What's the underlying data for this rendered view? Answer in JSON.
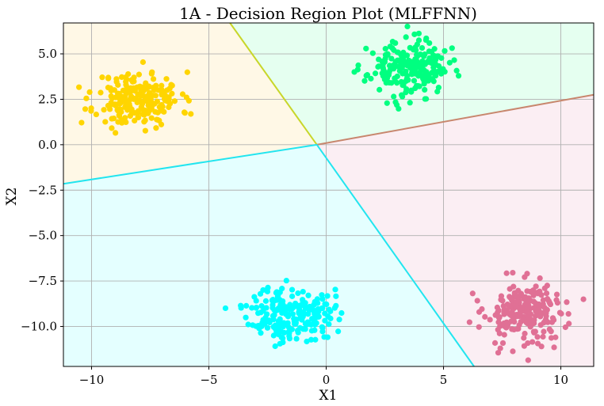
{
  "chart_data": {
    "type": "scatter",
    "title": "1A - Decision Region Plot (MLFFNN)",
    "xlabel": "X1",
    "ylabel": "X2",
    "xlim": [
      -11.2,
      11.4
    ],
    "ylim": [
      -12.2,
      6.7
    ],
    "xticks": [
      -10,
      -5,
      0,
      5,
      10
    ],
    "yticks": [
      5.0,
      2.5,
      0.0,
      -2.5,
      -5.0,
      -7.5,
      -10.0
    ],
    "xtick_labels": [
      "−10",
      "−5",
      "0",
      "5",
      "10"
    ],
    "ytick_labels": [
      "5.0",
      "2.5",
      "0.0",
      "−2.5",
      "−5.0",
      "−7.5",
      "−10.0"
    ],
    "grid": true,
    "regions": [
      {
        "class": "yellow",
        "color": "#fff8e6",
        "polygon": [
          [
            -11.2,
            6.7
          ],
          [
            -4.1,
            6.7
          ],
          [
            -0.4,
            0.0
          ],
          [
            -11.2,
            -2.15
          ]
        ]
      },
      {
        "class": "green",
        "color": "#e5fff0",
        "polygon": [
          [
            -4.1,
            6.7
          ],
          [
            11.4,
            6.7
          ],
          [
            11.4,
            2.75
          ],
          [
            -0.4,
            0.0
          ]
        ]
      },
      {
        "class": "pink",
        "color": "#fbeef3",
        "polygon": [
          [
            -0.4,
            0.0
          ],
          [
            11.4,
            2.75
          ],
          [
            11.4,
            -12.2
          ],
          [
            6.3,
            -12.2
          ]
        ]
      },
      {
        "class": "cyan",
        "color": "#e4ffff",
        "polygon": [
          [
            -11.2,
            -2.15
          ],
          [
            -0.4,
            0.0
          ],
          [
            6.3,
            -12.2
          ],
          [
            -11.2,
            -12.2
          ]
        ]
      }
    ],
    "boundaries": [
      {
        "from": [
          -4.1,
          6.7
        ],
        "to": [
          -0.4,
          0.0
        ],
        "color": "#c8d62a"
      },
      {
        "from": [
          -0.4,
          0.0
        ],
        "to": [
          11.4,
          2.75
        ],
        "color": "#c8876e"
      },
      {
        "from": [
          -11.2,
          -2.15
        ],
        "to": [
          -0.4,
          0.0
        ],
        "color": "#22e5ef"
      },
      {
        "from": [
          -0.4,
          0.0
        ],
        "to": [
          6.3,
          -12.2
        ],
        "color": "#22e5ef"
      }
    ],
    "series": [
      {
        "color": "#ffd500",
        "center": [
          -8.0,
          2.5
        ],
        "spread": [
          0.9,
          0.75
        ],
        "count": 220,
        "seed": 11
      },
      {
        "color": "#00ff80",
        "center": [
          3.5,
          4.2
        ],
        "spread": [
          0.85,
          0.75
        ],
        "count": 220,
        "seed": 23
      },
      {
        "color": "#00ffff",
        "center": [
          -1.5,
          -9.3
        ],
        "spread": [
          0.9,
          0.75
        ],
        "count": 220,
        "seed": 37
      },
      {
        "color": "#e07095",
        "center": [
          8.5,
          -9.3
        ],
        "spread": [
          0.9,
          0.9
        ],
        "count": 220,
        "seed": 53
      }
    ]
  }
}
